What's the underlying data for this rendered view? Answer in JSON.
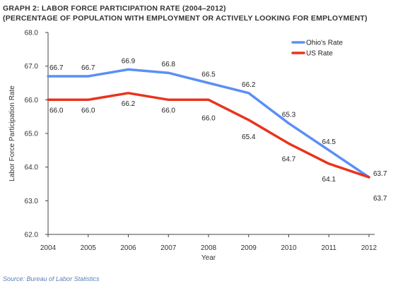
{
  "header": {
    "title": "GRAPH 2: LABOR FORCE PARTICIPATION RATE (2004–2012)",
    "subtitle": "(PERCENTAGE OF POPULATION WITH EMPLOYMENT OR ACTIVELY LOOKING FOR EMPLOYMENT)"
  },
  "footer": {
    "source": "Source: Bureau of Labor Statistics"
  },
  "chart_data": {
    "type": "line",
    "title": "GRAPH 2: LABOR FORCE PARTICIPATION RATE (2004–2012)",
    "subtitle": "(PERCENTAGE OF POPULATION WITH EMPLOYMENT OR ACTIVELY LOOKING FOR EMPLOYMENT)",
    "xlabel": "Year",
    "ylabel": "Labor Force Participation Rate",
    "x": [
      "2004",
      "2005",
      "2006",
      "2007",
      "2008",
      "2009",
      "2010",
      "2011",
      "2012"
    ],
    "ylim": [
      62.0,
      68.0
    ],
    "yticks": [
      "62.0",
      "63.0",
      "64.0",
      "65.0",
      "66.0",
      "67.0",
      "68.0"
    ],
    "grid": false,
    "legend_position": "top-right",
    "series": [
      {
        "name": "Ohio's Rate",
        "color": "#5b8ff5",
        "values": [
          66.7,
          66.7,
          66.9,
          66.8,
          66.5,
          66.2,
          65.3,
          64.5,
          63.7
        ],
        "labels": [
          "66.7",
          "66.7",
          "66.9",
          "66.8",
          "66.5",
          "66.2",
          "65.3",
          "64.5",
          "63.7"
        ]
      },
      {
        "name": "US Rate",
        "color": "#e8341c",
        "values": [
          66.0,
          66.0,
          66.2,
          66.0,
          66.0,
          65.4,
          64.7,
          64.1,
          63.7
        ],
        "labels": [
          "66.0",
          "66.0",
          "66.2",
          "66.0",
          "66.0",
          "65.4",
          "64.7",
          "64.1",
          "63.7"
        ]
      }
    ]
  }
}
